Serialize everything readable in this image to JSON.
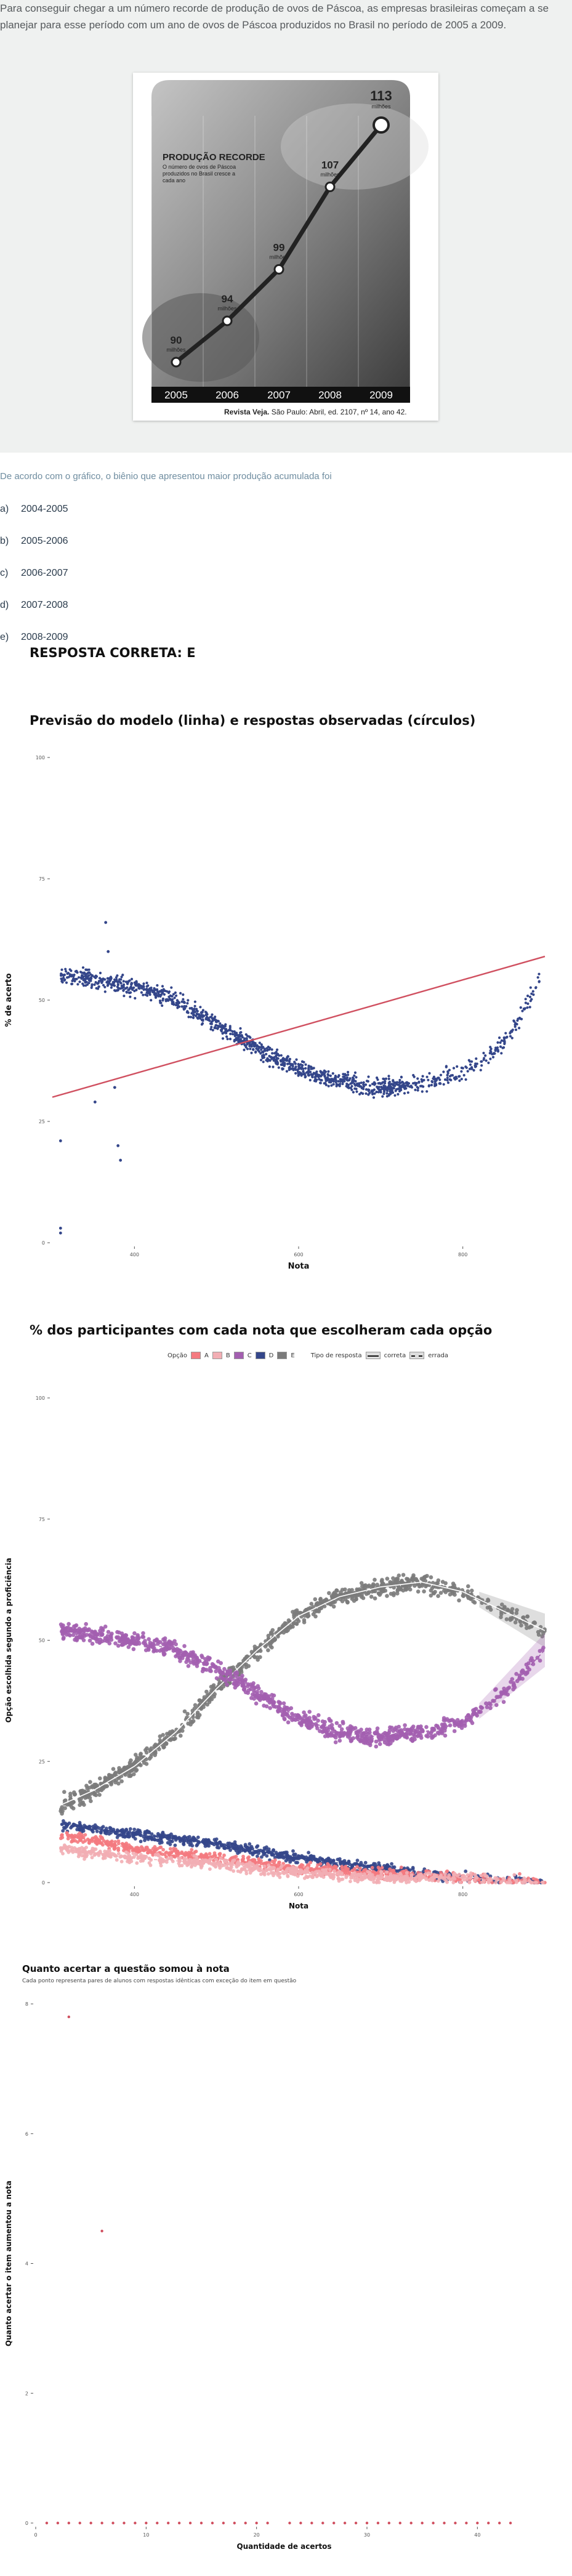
{
  "question": {
    "intro": "Para conseguir chegar a um número recorde de produção de ovos de Páscoa, as empresas brasileiras começam a se planejar para esse período com um ano de ovos de Páscoa produzidos no Brasil no período de 2005 a 2009.",
    "figure": {
      "heading": "PRODUÇÃO RECORDE",
      "subheading": "O número de ovos de Páscoa produzidos no Brasil cresce a cada ano",
      "unit": "milhões",
      "source_bold": "Revista Veja.",
      "source_rest": " São Paulo: Abril, ed. 2107, nº 14, ano 42.",
      "years": [
        "2005",
        "2006",
        "2007",
        "2008",
        "2009"
      ],
      "values": [
        90,
        94,
        99,
        107,
        113
      ]
    },
    "prompt": "De acordo com o gráfico, o biênio que apresentou maior produção acumulada foi",
    "options": [
      {
        "letter": "a)",
        "text": "2004-2005"
      },
      {
        "letter": "b)",
        "text": "2005-2006"
      },
      {
        "letter": "c)",
        "text": "2006-2007"
      },
      {
        "letter": "d)",
        "text": "2007-2008"
      },
      {
        "letter": "e)",
        "text": "2008-2009"
      }
    ],
    "answer": "RESPOSTA CORRETA: E"
  },
  "chart_data": [
    {
      "type": "scatter",
      "title": "Previsão do modelo (linha) e respostas observadas (círculos)",
      "xlabel": "Nota",
      "ylabel": "% de acerto",
      "xlim": [
        300,
        900
      ],
      "ylim": [
        0,
        100
      ],
      "xticks": [
        "400",
        "600",
        "800"
      ],
      "yticks": [
        "0",
        "25",
        "50",
        "75",
        "100"
      ],
      "point_color": "#34468a",
      "line_color": "#d05060",
      "observed_trend": {
        "x": [
          310,
          330,
          360,
          390,
          420,
          450,
          480,
          510,
          540,
          570,
          600,
          630,
          660,
          690,
          720,
          750,
          780,
          800,
          830,
          860,
          895
        ],
        "y": [
          55,
          55,
          54,
          53,
          52,
          50,
          47,
          44,
          41,
          38,
          36,
          34,
          33,
          32,
          32,
          33,
          34,
          35,
          38,
          43,
          55
        ]
      },
      "model_line": {
        "x": [
          300,
          900
        ],
        "y": [
          30,
          59
        ]
      },
      "outliers": [
        {
          "x": 310,
          "y": 3
        },
        {
          "x": 310,
          "y": 2
        },
        {
          "x": 310,
          "y": 21
        },
        {
          "x": 365,
          "y": 66
        },
        {
          "x": 368,
          "y": 60
        },
        {
          "x": 380,
          "y": 20
        },
        {
          "x": 383,
          "y": 17
        },
        {
          "x": 376,
          "y": 32
        },
        {
          "x": 352,
          "y": 29
        }
      ]
    },
    {
      "type": "scatter",
      "title": "% dos participantes com cada nota que escolheram cada opção",
      "xlabel": "Nota",
      "ylabel": "Opção escolhida segundo a proficiência",
      "xlim": [
        300,
        900
      ],
      "ylim": [
        0,
        100
      ],
      "xticks": [
        "400",
        "600",
        "800"
      ],
      "yticks": [
        "0",
        "25",
        "50",
        "75",
        "100"
      ],
      "legend": {
        "option_label": "Opção",
        "response_label": "Tipo de resposta",
        "correct_label": "correta",
        "wrong_label": "errada",
        "placement": "top"
      },
      "series": [
        {
          "name": "A",
          "color": "#f47a80",
          "x": [
            310,
            400,
            500,
            600,
            700,
            800,
            900
          ],
          "y": [
            10,
            7,
            5,
            3,
            2,
            1,
            0
          ]
        },
        {
          "name": "B",
          "color": "#f2aeb4",
          "x": [
            310,
            400,
            500,
            600,
            700,
            800,
            900
          ],
          "y": [
            7,
            5,
            4,
            2,
            1,
            1,
            0
          ]
        },
        {
          "name": "C",
          "color": "#a35fb0",
          "x": [
            310,
            350,
            400,
            450,
            500,
            550,
            600,
            650,
            700,
            750,
            800,
            850,
            900
          ],
          "y": [
            52,
            51,
            50,
            48,
            44,
            39,
            34,
            31,
            30,
            31,
            33,
            39,
            48
          ]
        },
        {
          "name": "D",
          "color": "#34468a",
          "x": [
            310,
            400,
            500,
            600,
            700,
            800,
            900
          ],
          "y": [
            12,
            10,
            8,
            5,
            3,
            1,
            0
          ]
        },
        {
          "name": "E",
          "color": "#7b7b7b",
          "x": [
            310,
            350,
            400,
            450,
            500,
            550,
            600,
            650,
            700,
            750,
            800,
            850,
            900
          ],
          "y": [
            16,
            19,
            24,
            31,
            40,
            48,
            55,
            59,
            61,
            62,
            60,
            56,
            52
          ]
        }
      ]
    },
    {
      "type": "scatter",
      "title": "Quanto acertar a questão somou à nota",
      "subtitle": "Cada ponto representa pares de alunos com respostas idênticas com exceção do item em questão",
      "xlabel": "Quantidade de acertos",
      "ylabel": "Quanto acertar o item aumentou a nota",
      "xlim": [
        0,
        45
      ],
      "ylim": [
        0,
        8
      ],
      "xticks": [
        "0",
        "10",
        "20",
        "30",
        "40"
      ],
      "yticks": [
        "0",
        "2",
        "4",
        "6",
        "8"
      ],
      "point_color": "#d05060",
      "points": [
        {
          "x": 3,
          "y": 7.8
        },
        {
          "x": 6,
          "y": 4.5
        },
        {
          "x": 1,
          "y": 0
        },
        {
          "x": 2,
          "y": 0
        },
        {
          "x": 3,
          "y": 0
        },
        {
          "x": 4,
          "y": 0
        },
        {
          "x": 5,
          "y": 0
        },
        {
          "x": 6,
          "y": 0
        },
        {
          "x": 7,
          "y": 0
        },
        {
          "x": 8,
          "y": 0
        },
        {
          "x": 9,
          "y": 0
        },
        {
          "x": 10,
          "y": 0
        },
        {
          "x": 11,
          "y": 0
        },
        {
          "x": 12,
          "y": 0
        },
        {
          "x": 13,
          "y": 0
        },
        {
          "x": 14,
          "y": 0
        },
        {
          "x": 15,
          "y": 0
        },
        {
          "x": 16,
          "y": 0
        },
        {
          "x": 17,
          "y": 0
        },
        {
          "x": 18,
          "y": 0
        },
        {
          "x": 19,
          "y": 0
        },
        {
          "x": 20,
          "y": 0
        },
        {
          "x": 21,
          "y": 0
        },
        {
          "x": 23,
          "y": 0
        },
        {
          "x": 24,
          "y": 0
        },
        {
          "x": 25,
          "y": 0
        },
        {
          "x": 26,
          "y": 0
        },
        {
          "x": 27,
          "y": 0
        },
        {
          "x": 28,
          "y": 0
        },
        {
          "x": 29,
          "y": 0
        },
        {
          "x": 30,
          "y": 0
        },
        {
          "x": 31,
          "y": 0
        },
        {
          "x": 32,
          "y": 0
        },
        {
          "x": 33,
          "y": 0
        },
        {
          "x": 34,
          "y": 0
        },
        {
          "x": 35,
          "y": 0
        },
        {
          "x": 36,
          "y": 0
        },
        {
          "x": 37,
          "y": 0
        },
        {
          "x": 38,
          "y": 0
        },
        {
          "x": 39,
          "y": 0
        },
        {
          "x": 40,
          "y": 0
        },
        {
          "x": 41,
          "y": 0
        },
        {
          "x": 42,
          "y": 0
        },
        {
          "x": 43,
          "y": 0
        }
      ]
    }
  ]
}
